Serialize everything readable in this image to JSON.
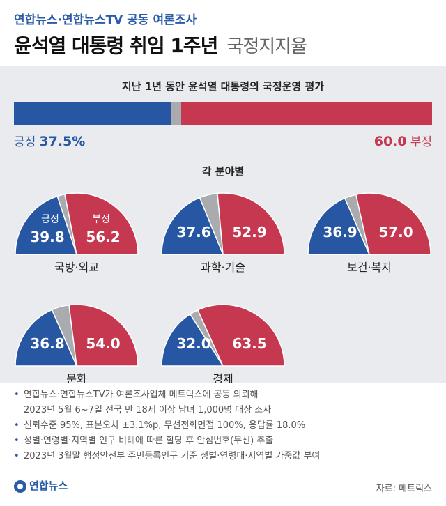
{
  "header": {
    "kicker": "연합뉴스·연합뉴스TV 공동 여론조사",
    "title_main": "윤석열 대통령 취임 1주년",
    "title_sub": "국정지지율"
  },
  "overall": {
    "title": "지난 1년 동안 윤석열 대통령의 국정운영 평가",
    "positive_label": "긍정",
    "positive_value": "37.5%",
    "negative_label": "부정",
    "negative_value": "60.0"
  },
  "sectors_title": "각 분야별",
  "colors": {
    "positive": "#2756a3",
    "negative": "#c5384f",
    "neutral": "#a9abaf"
  },
  "chart_data": [
    {
      "type": "bar",
      "title": "지난 1년 동안 윤석열 대통령의 국정운영 평가",
      "categories": [
        "긍정",
        "부정"
      ],
      "values": [
        37.5,
        60.0
      ],
      "orientation": "horizontal-stacked",
      "xlim": [
        0,
        100
      ]
    },
    {
      "type": "pie",
      "subtype": "semicircle",
      "title": "각 분야별",
      "charts": [
        {
          "category": "국방·외교",
          "positive": 39.8,
          "negative": 56.2,
          "pos_label": "긍정",
          "neg_label": "부정"
        },
        {
          "category": "과학·기술",
          "positive": 37.6,
          "negative": 52.9
        },
        {
          "category": "보건·복지",
          "positive": 36.9,
          "negative": 57.0
        },
        {
          "category": "문화",
          "positive": 36.8,
          "negative": 54.0
        },
        {
          "category": "경제",
          "positive": 32.0,
          "negative": 63.5
        }
      ]
    }
  ],
  "notes": [
    [
      "연합뉴스·연합뉴스TV가 여론조사업체 메트릭스에 공동 의뢰해",
      "2023년 5월 6~7일 전국 만 18세 이상 남녀 1,000명 대상 조사"
    ],
    [
      "신뢰수준 95%, 표본오차 ±3.1%p, 무선전화면접 100%, 응답률 18.0%"
    ],
    [
      "성별·연령별·지역별 인구 비례에 따른 할당 후 안심번호(무선) 추출"
    ],
    [
      "2023년 3월말 행정안전부 주민등록인구 기준 성별·연령대·지역별 가중값 부여"
    ]
  ],
  "footer": {
    "logo": "연합뉴스",
    "source": "자료: 메트릭스"
  }
}
